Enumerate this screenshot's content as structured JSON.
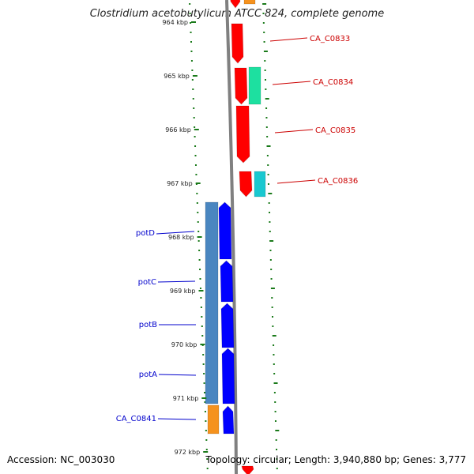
{
  "title": "Clostridium acetobutylicum ATCC 824, complete genome",
  "footer": {
    "accession": "Accession: NC_003030",
    "stats": "Topology: circular; Length: 3,940,880 bp; Genes: 3,777"
  },
  "colors": {
    "backbone": "#808080",
    "tick": "#1a7a1a",
    "forward_label": "#0000cc",
    "reverse_label": "#cc0000"
  },
  "scale_ticks": [
    {
      "label": "964 kbp"
    },
    {
      "label": "965 kbp"
    },
    {
      "label": "966 kbp"
    },
    {
      "label": "967 kbp"
    },
    {
      "label": "968 kbp"
    },
    {
      "label": "969 kbp"
    },
    {
      "label": "970 kbp"
    },
    {
      "label": "971 kbp"
    },
    {
      "label": "972 kbp"
    }
  ],
  "gene_labels": [
    {
      "name": "CA_C0833",
      "strand": "reverse"
    },
    {
      "name": "CA_C0834",
      "strand": "reverse"
    },
    {
      "name": "CA_C0835",
      "strand": "reverse"
    },
    {
      "name": "CA_C0836",
      "strand": "reverse"
    },
    {
      "name": "potD",
      "strand": "forward"
    },
    {
      "name": "potC",
      "strand": "forward"
    },
    {
      "name": "potB",
      "strand": "forward"
    },
    {
      "name": "potA",
      "strand": "forward"
    },
    {
      "name": "CA_C0841",
      "strand": "forward"
    }
  ],
  "feature_colors": {
    "cds_forward": "#0000ff",
    "cds_reverse": "#ff0000",
    "operon": "#4a86c0",
    "orange": "#f5921e",
    "green": "#1de0a0",
    "cyan": "#19c8d0"
  }
}
